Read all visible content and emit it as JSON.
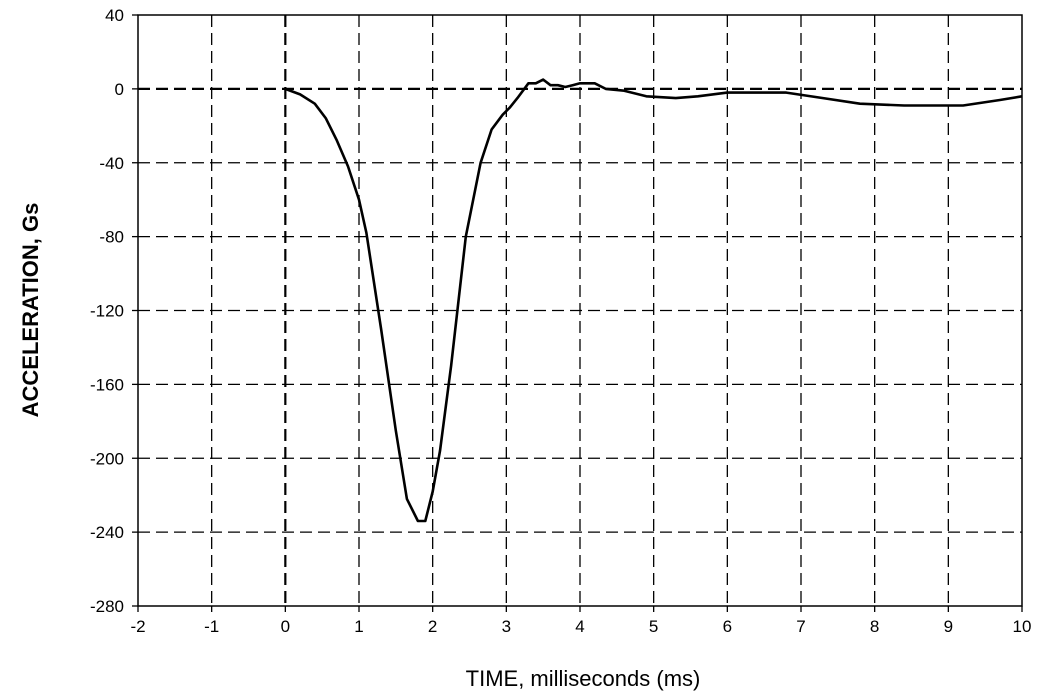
{
  "chart_data": {
    "type": "line",
    "title": "",
    "xlabel": "TIME, milliseconds (ms)",
    "ylabel": "ACCELERATION, Gs",
    "xlim": [
      -2,
      10
    ],
    "ylim": [
      -280,
      40
    ],
    "x_ticks": [
      -2,
      -1,
      0,
      1,
      2,
      3,
      4,
      5,
      6,
      7,
      8,
      9,
      10
    ],
    "y_ticks": [
      40,
      0,
      -40,
      -80,
      -120,
      -160,
      -200,
      -240,
      -280
    ],
    "x_tick_labels": [
      "-2",
      "-1",
      "0",
      "1",
      "2",
      "3",
      "4",
      "5",
      "6",
      "7",
      "8",
      "9",
      "10"
    ],
    "y_tick_labels": [
      "40",
      "0",
      "-40",
      "-80",
      "-120",
      "-160",
      "-200",
      "-240",
      "-280"
    ],
    "grid": true,
    "legend": "none",
    "series": [
      {
        "color": "#000000",
        "x": [
          0,
          0.2,
          0.4,
          0.55,
          0.7,
          0.85,
          1.0,
          1.1,
          1.3,
          1.5,
          1.65,
          1.8,
          1.9,
          2.0,
          2.1,
          2.25,
          2.45,
          2.65,
          2.8,
          2.95,
          3.05,
          3.15,
          3.3,
          3.4,
          3.5,
          3.6,
          3.7,
          3.8,
          3.9,
          4.0,
          4.1,
          4.2,
          4.35,
          4.6,
          4.9,
          5.3,
          5.6,
          6.0,
          6.8,
          7.3,
          7.8,
          8.4,
          8.8,
          9.2,
          9.7,
          10.0
        ],
        "values": [
          0,
          -3,
          -8,
          -16,
          -28,
          -42,
          -60,
          -78,
          -130,
          -185,
          -222,
          -234,
          -234,
          -218,
          -196,
          -150,
          -80,
          -40,
          -22,
          -14,
          -10,
          -5,
          3,
          3,
          5,
          2,
          2,
          1,
          2,
          3,
          3,
          3,
          0,
          -1,
          -4,
          -5,
          -4,
          -2,
          -2,
          -5,
          -8,
          -9,
          -9,
          -9,
          -6,
          -4
        ]
      }
    ]
  }
}
